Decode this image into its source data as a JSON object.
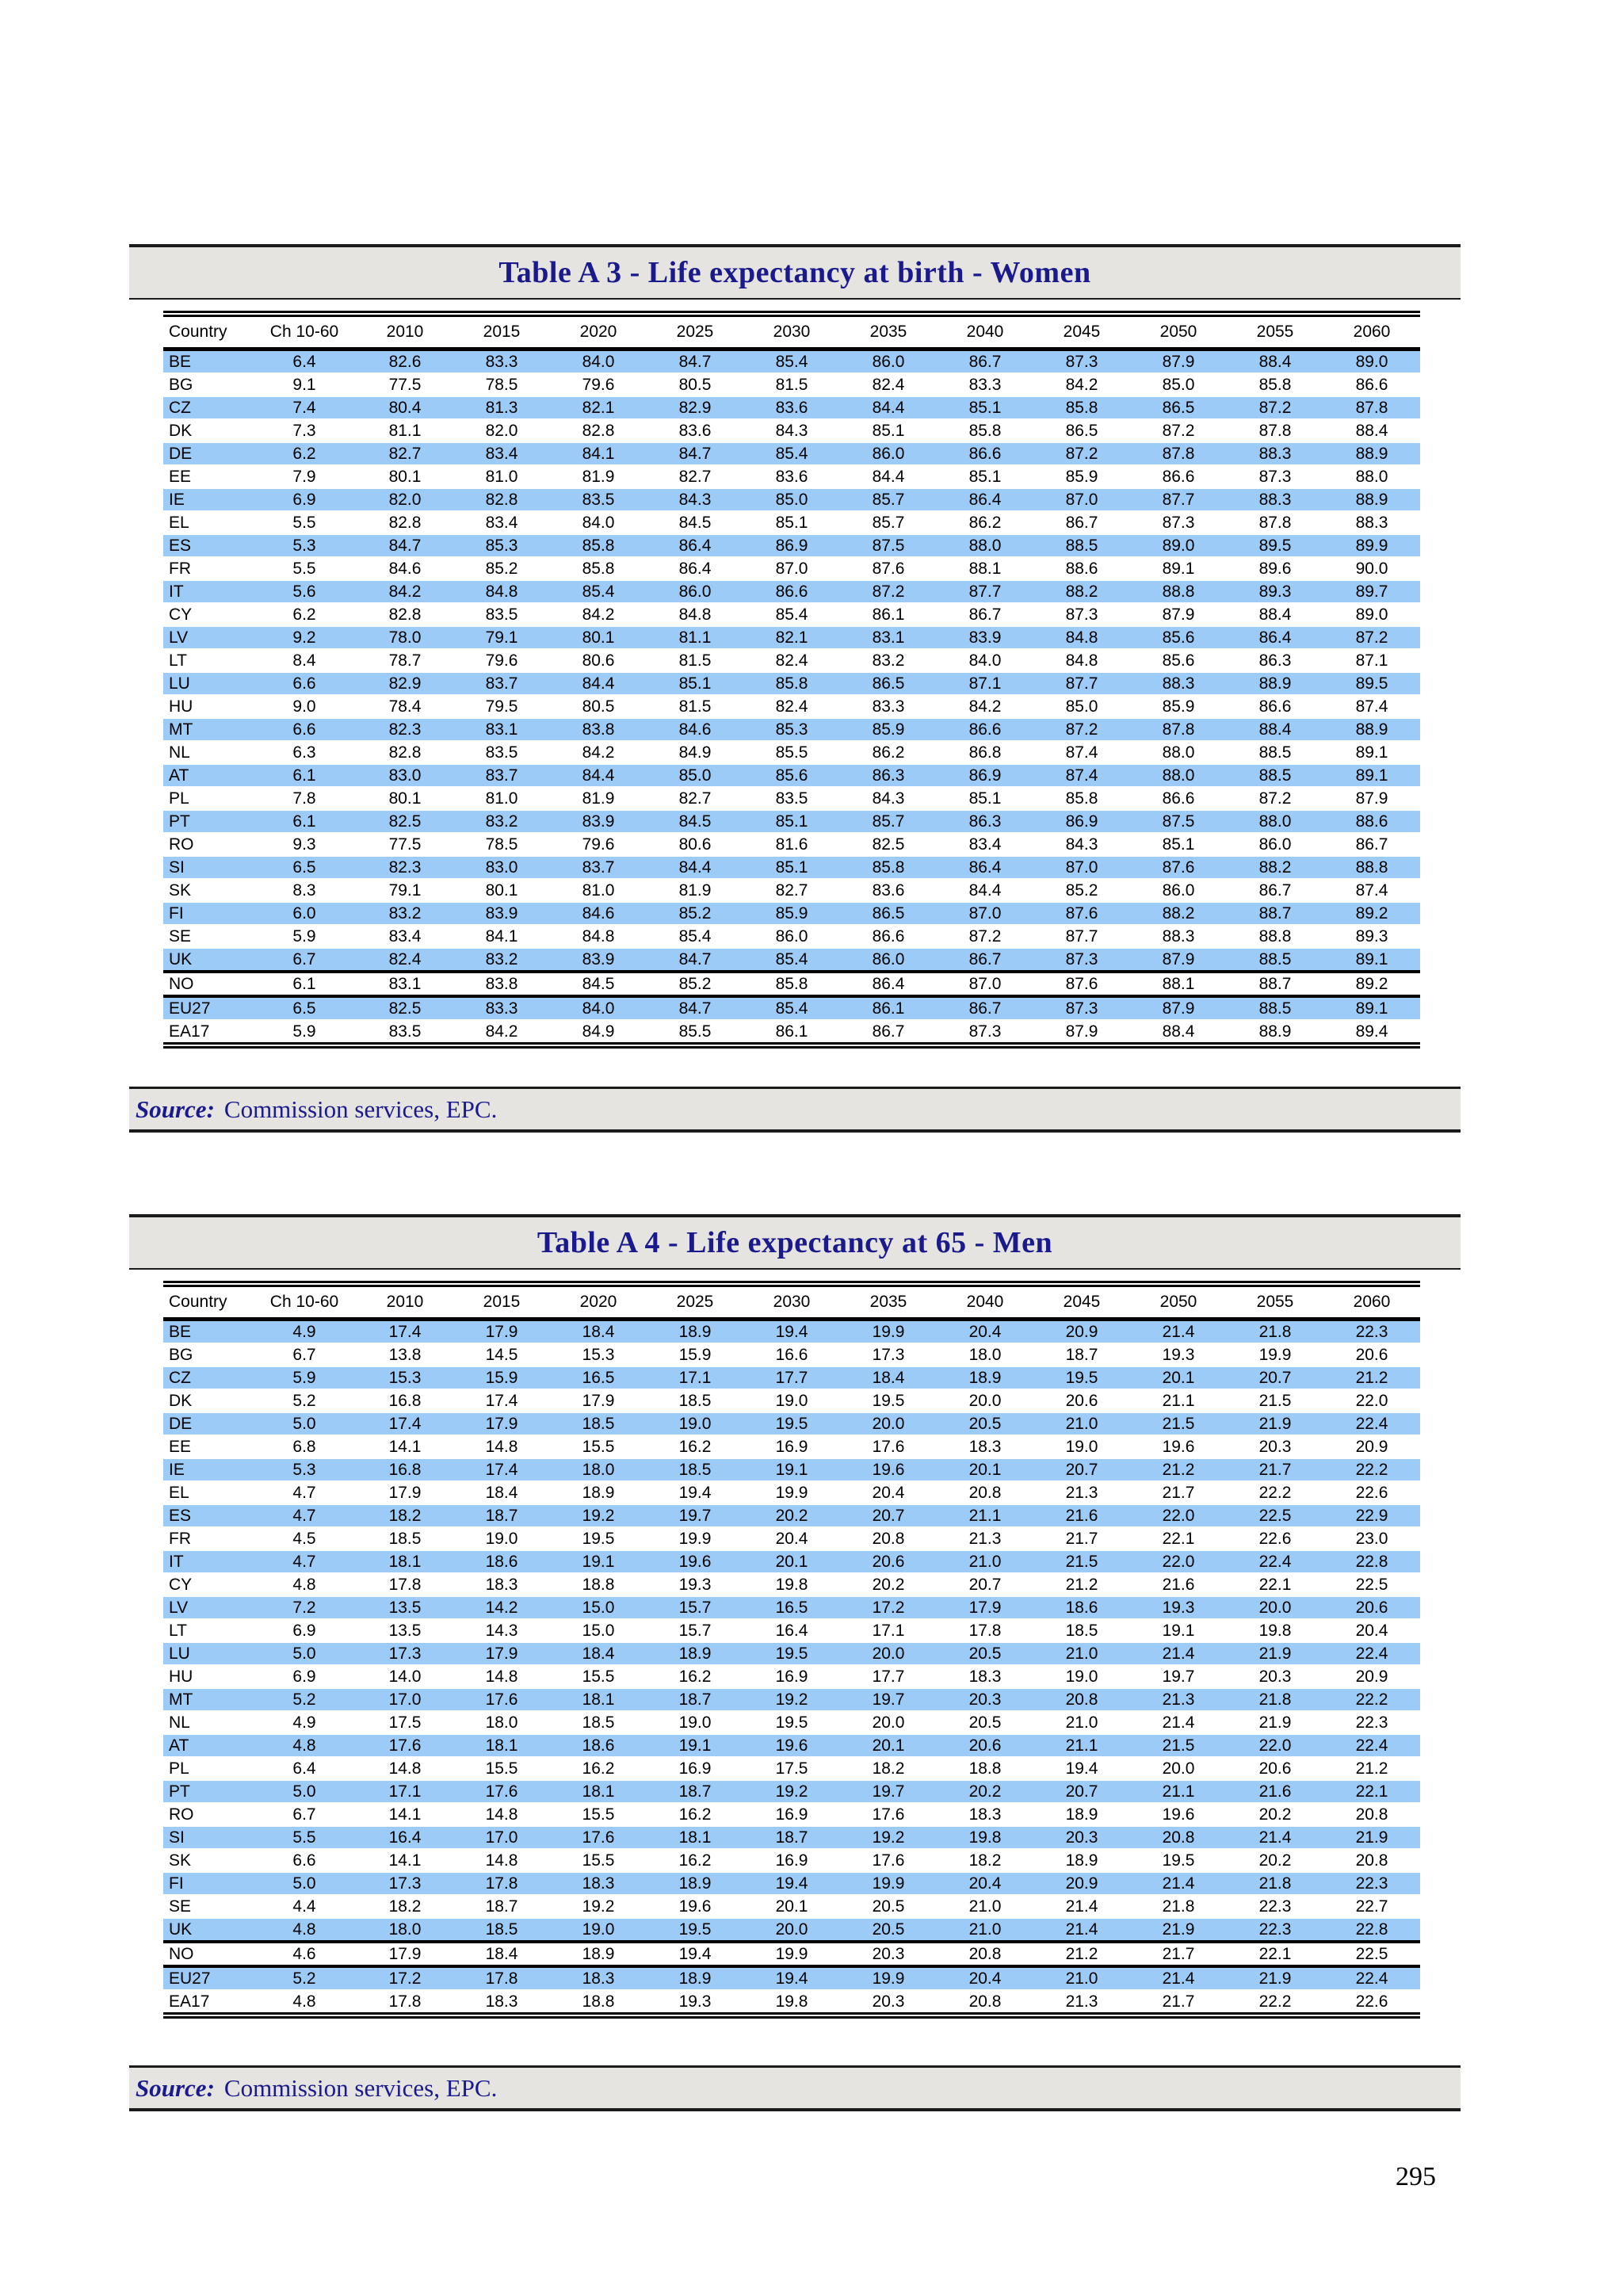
{
  "page": {
    "number": "295"
  },
  "colors": {
    "row_highlight": "#9BCBF6",
    "band_bg": "#E5E4E1",
    "heading_text": "#1A1A8C",
    "border_dark": "#1B1B1B"
  },
  "tables": [
    {
      "title": "Table A 3 - Life expectancy at birth - Women",
      "source_label": "Source:",
      "source_text": "Commission services, EPC.",
      "columns": [
        "Country",
        "Ch 10-60",
        "2010",
        "2015",
        "2020",
        "2025",
        "2030",
        "2035",
        "2040",
        "2045",
        "2050",
        "2055",
        "2060"
      ],
      "thick_separator_after": [
        "UK",
        "NO"
      ],
      "rows": [
        [
          "BE",
          "6.4",
          "82.6",
          "83.3",
          "84.0",
          "84.7",
          "85.4",
          "86.0",
          "86.7",
          "87.3",
          "87.9",
          "88.4",
          "89.0"
        ],
        [
          "BG",
          "9.1",
          "77.5",
          "78.5",
          "79.6",
          "80.5",
          "81.5",
          "82.4",
          "83.3",
          "84.2",
          "85.0",
          "85.8",
          "86.6"
        ],
        [
          "CZ",
          "7.4",
          "80.4",
          "81.3",
          "82.1",
          "82.9",
          "83.6",
          "84.4",
          "85.1",
          "85.8",
          "86.5",
          "87.2",
          "87.8"
        ],
        [
          "DK",
          "7.3",
          "81.1",
          "82.0",
          "82.8",
          "83.6",
          "84.3",
          "85.1",
          "85.8",
          "86.5",
          "87.2",
          "87.8",
          "88.4"
        ],
        [
          "DE",
          "6.2",
          "82.7",
          "83.4",
          "84.1",
          "84.7",
          "85.4",
          "86.0",
          "86.6",
          "87.2",
          "87.8",
          "88.3",
          "88.9"
        ],
        [
          "EE",
          "7.9",
          "80.1",
          "81.0",
          "81.9",
          "82.7",
          "83.6",
          "84.4",
          "85.1",
          "85.9",
          "86.6",
          "87.3",
          "88.0"
        ],
        [
          "IE",
          "6.9",
          "82.0",
          "82.8",
          "83.5",
          "84.3",
          "85.0",
          "85.7",
          "86.4",
          "87.0",
          "87.7",
          "88.3",
          "88.9"
        ],
        [
          "EL",
          "5.5",
          "82.8",
          "83.4",
          "84.0",
          "84.5",
          "85.1",
          "85.7",
          "86.2",
          "86.7",
          "87.3",
          "87.8",
          "88.3"
        ],
        [
          "ES",
          "5.3",
          "84.7",
          "85.3",
          "85.8",
          "86.4",
          "86.9",
          "87.5",
          "88.0",
          "88.5",
          "89.0",
          "89.5",
          "89.9"
        ],
        [
          "FR",
          "5.5",
          "84.6",
          "85.2",
          "85.8",
          "86.4",
          "87.0",
          "87.6",
          "88.1",
          "88.6",
          "89.1",
          "89.6",
          "90.0"
        ],
        [
          "IT",
          "5.6",
          "84.2",
          "84.8",
          "85.4",
          "86.0",
          "86.6",
          "87.2",
          "87.7",
          "88.2",
          "88.8",
          "89.3",
          "89.7"
        ],
        [
          "CY",
          "6.2",
          "82.8",
          "83.5",
          "84.2",
          "84.8",
          "85.4",
          "86.1",
          "86.7",
          "87.3",
          "87.9",
          "88.4",
          "89.0"
        ],
        [
          "LV",
          "9.2",
          "78.0",
          "79.1",
          "80.1",
          "81.1",
          "82.1",
          "83.1",
          "83.9",
          "84.8",
          "85.6",
          "86.4",
          "87.2"
        ],
        [
          "LT",
          "8.4",
          "78.7",
          "79.6",
          "80.6",
          "81.5",
          "82.4",
          "83.2",
          "84.0",
          "84.8",
          "85.6",
          "86.3",
          "87.1"
        ],
        [
          "LU",
          "6.6",
          "82.9",
          "83.7",
          "84.4",
          "85.1",
          "85.8",
          "86.5",
          "87.1",
          "87.7",
          "88.3",
          "88.9",
          "89.5"
        ],
        [
          "HU",
          "9.0",
          "78.4",
          "79.5",
          "80.5",
          "81.5",
          "82.4",
          "83.3",
          "84.2",
          "85.0",
          "85.9",
          "86.6",
          "87.4"
        ],
        [
          "MT",
          "6.6",
          "82.3",
          "83.1",
          "83.8",
          "84.6",
          "85.3",
          "85.9",
          "86.6",
          "87.2",
          "87.8",
          "88.4",
          "88.9"
        ],
        [
          "NL",
          "6.3",
          "82.8",
          "83.5",
          "84.2",
          "84.9",
          "85.5",
          "86.2",
          "86.8",
          "87.4",
          "88.0",
          "88.5",
          "89.1"
        ],
        [
          "AT",
          "6.1",
          "83.0",
          "83.7",
          "84.4",
          "85.0",
          "85.6",
          "86.3",
          "86.9",
          "87.4",
          "88.0",
          "88.5",
          "89.1"
        ],
        [
          "PL",
          "7.8",
          "80.1",
          "81.0",
          "81.9",
          "82.7",
          "83.5",
          "84.3",
          "85.1",
          "85.8",
          "86.6",
          "87.2",
          "87.9"
        ],
        [
          "PT",
          "6.1",
          "82.5",
          "83.2",
          "83.9",
          "84.5",
          "85.1",
          "85.7",
          "86.3",
          "86.9",
          "87.5",
          "88.0",
          "88.6"
        ],
        [
          "RO",
          "9.3",
          "77.5",
          "78.5",
          "79.6",
          "80.6",
          "81.6",
          "82.5",
          "83.4",
          "84.3",
          "85.1",
          "86.0",
          "86.7"
        ],
        [
          "SI",
          "6.5",
          "82.3",
          "83.0",
          "83.7",
          "84.4",
          "85.1",
          "85.8",
          "86.4",
          "87.0",
          "87.6",
          "88.2",
          "88.8"
        ],
        [
          "SK",
          "8.3",
          "79.1",
          "80.1",
          "81.0",
          "81.9",
          "82.7",
          "83.6",
          "84.4",
          "85.2",
          "86.0",
          "86.7",
          "87.4"
        ],
        [
          "FI",
          "6.0",
          "83.2",
          "83.9",
          "84.6",
          "85.2",
          "85.9",
          "86.5",
          "87.0",
          "87.6",
          "88.2",
          "88.7",
          "89.2"
        ],
        [
          "SE",
          "5.9",
          "83.4",
          "84.1",
          "84.8",
          "85.4",
          "86.0",
          "86.6",
          "87.2",
          "87.7",
          "88.3",
          "88.8",
          "89.3"
        ],
        [
          "UK",
          "6.7",
          "82.4",
          "83.2",
          "83.9",
          "84.7",
          "85.4",
          "86.0",
          "86.7",
          "87.3",
          "87.9",
          "88.5",
          "89.1"
        ],
        [
          "NO",
          "6.1",
          "83.1",
          "83.8",
          "84.5",
          "85.2",
          "85.8",
          "86.4",
          "87.0",
          "87.6",
          "88.1",
          "88.7",
          "89.2"
        ],
        [
          "EU27",
          "6.5",
          "82.5",
          "83.3",
          "84.0",
          "84.7",
          "85.4",
          "86.1",
          "86.7",
          "87.3",
          "87.9",
          "88.5",
          "89.1"
        ],
        [
          "EA17",
          "5.9",
          "83.5",
          "84.2",
          "84.9",
          "85.5",
          "86.1",
          "86.7",
          "87.3",
          "87.9",
          "88.4",
          "88.9",
          "89.4"
        ]
      ]
    },
    {
      "title": "Table A 4 - Life expectancy at 65 - Men",
      "source_label": "Source:",
      "source_text": "Commission services, EPC.",
      "columns": [
        "Country",
        "Ch 10-60",
        "2010",
        "2015",
        "2020",
        "2025",
        "2030",
        "2035",
        "2040",
        "2045",
        "2050",
        "2055",
        "2060"
      ],
      "thick_separator_after": [
        "UK",
        "NO"
      ],
      "rows": [
        [
          "BE",
          "4.9",
          "17.4",
          "17.9",
          "18.4",
          "18.9",
          "19.4",
          "19.9",
          "20.4",
          "20.9",
          "21.4",
          "21.8",
          "22.3"
        ],
        [
          "BG",
          "6.7",
          "13.8",
          "14.5",
          "15.3",
          "15.9",
          "16.6",
          "17.3",
          "18.0",
          "18.7",
          "19.3",
          "19.9",
          "20.6"
        ],
        [
          "CZ",
          "5.9",
          "15.3",
          "15.9",
          "16.5",
          "17.1",
          "17.7",
          "18.4",
          "18.9",
          "19.5",
          "20.1",
          "20.7",
          "21.2"
        ],
        [
          "DK",
          "5.2",
          "16.8",
          "17.4",
          "17.9",
          "18.5",
          "19.0",
          "19.5",
          "20.0",
          "20.6",
          "21.1",
          "21.5",
          "22.0"
        ],
        [
          "DE",
          "5.0",
          "17.4",
          "17.9",
          "18.5",
          "19.0",
          "19.5",
          "20.0",
          "20.5",
          "21.0",
          "21.5",
          "21.9",
          "22.4"
        ],
        [
          "EE",
          "6.8",
          "14.1",
          "14.8",
          "15.5",
          "16.2",
          "16.9",
          "17.6",
          "18.3",
          "19.0",
          "19.6",
          "20.3",
          "20.9"
        ],
        [
          "IE",
          "5.3",
          "16.8",
          "17.4",
          "18.0",
          "18.5",
          "19.1",
          "19.6",
          "20.1",
          "20.7",
          "21.2",
          "21.7",
          "22.2"
        ],
        [
          "EL",
          "4.7",
          "17.9",
          "18.4",
          "18.9",
          "19.4",
          "19.9",
          "20.4",
          "20.8",
          "21.3",
          "21.7",
          "22.2",
          "22.6"
        ],
        [
          "ES",
          "4.7",
          "18.2",
          "18.7",
          "19.2",
          "19.7",
          "20.2",
          "20.7",
          "21.1",
          "21.6",
          "22.0",
          "22.5",
          "22.9"
        ],
        [
          "FR",
          "4.5",
          "18.5",
          "19.0",
          "19.5",
          "19.9",
          "20.4",
          "20.8",
          "21.3",
          "21.7",
          "22.1",
          "22.6",
          "23.0"
        ],
        [
          "IT",
          "4.7",
          "18.1",
          "18.6",
          "19.1",
          "19.6",
          "20.1",
          "20.6",
          "21.0",
          "21.5",
          "22.0",
          "22.4",
          "22.8"
        ],
        [
          "CY",
          "4.8",
          "17.8",
          "18.3",
          "18.8",
          "19.3",
          "19.8",
          "20.2",
          "20.7",
          "21.2",
          "21.6",
          "22.1",
          "22.5"
        ],
        [
          "LV",
          "7.2",
          "13.5",
          "14.2",
          "15.0",
          "15.7",
          "16.5",
          "17.2",
          "17.9",
          "18.6",
          "19.3",
          "20.0",
          "20.6"
        ],
        [
          "LT",
          "6.9",
          "13.5",
          "14.3",
          "15.0",
          "15.7",
          "16.4",
          "17.1",
          "17.8",
          "18.5",
          "19.1",
          "19.8",
          "20.4"
        ],
        [
          "LU",
          "5.0",
          "17.3",
          "17.9",
          "18.4",
          "18.9",
          "19.5",
          "20.0",
          "20.5",
          "21.0",
          "21.4",
          "21.9",
          "22.4"
        ],
        [
          "HU",
          "6.9",
          "14.0",
          "14.8",
          "15.5",
          "16.2",
          "16.9",
          "17.7",
          "18.3",
          "19.0",
          "19.7",
          "20.3",
          "20.9"
        ],
        [
          "MT",
          "5.2",
          "17.0",
          "17.6",
          "18.1",
          "18.7",
          "19.2",
          "19.7",
          "20.3",
          "20.8",
          "21.3",
          "21.8",
          "22.2"
        ],
        [
          "NL",
          "4.9",
          "17.5",
          "18.0",
          "18.5",
          "19.0",
          "19.5",
          "20.0",
          "20.5",
          "21.0",
          "21.4",
          "21.9",
          "22.3"
        ],
        [
          "AT",
          "4.8",
          "17.6",
          "18.1",
          "18.6",
          "19.1",
          "19.6",
          "20.1",
          "20.6",
          "21.1",
          "21.5",
          "22.0",
          "22.4"
        ],
        [
          "PL",
          "6.4",
          "14.8",
          "15.5",
          "16.2",
          "16.9",
          "17.5",
          "18.2",
          "18.8",
          "19.4",
          "20.0",
          "20.6",
          "21.2"
        ],
        [
          "PT",
          "5.0",
          "17.1",
          "17.6",
          "18.1",
          "18.7",
          "19.2",
          "19.7",
          "20.2",
          "20.7",
          "21.1",
          "21.6",
          "22.1"
        ],
        [
          "RO",
          "6.7",
          "14.1",
          "14.8",
          "15.5",
          "16.2",
          "16.9",
          "17.6",
          "18.3",
          "18.9",
          "19.6",
          "20.2",
          "20.8"
        ],
        [
          "SI",
          "5.5",
          "16.4",
          "17.0",
          "17.6",
          "18.1",
          "18.7",
          "19.2",
          "19.8",
          "20.3",
          "20.8",
          "21.4",
          "21.9"
        ],
        [
          "SK",
          "6.6",
          "14.1",
          "14.8",
          "15.5",
          "16.2",
          "16.9",
          "17.6",
          "18.2",
          "18.9",
          "19.5",
          "20.2",
          "20.8"
        ],
        [
          "FI",
          "5.0",
          "17.3",
          "17.8",
          "18.3",
          "18.9",
          "19.4",
          "19.9",
          "20.4",
          "20.9",
          "21.4",
          "21.8",
          "22.3"
        ],
        [
          "SE",
          "4.4",
          "18.2",
          "18.7",
          "19.2",
          "19.6",
          "20.1",
          "20.5",
          "21.0",
          "21.4",
          "21.8",
          "22.3",
          "22.7"
        ],
        [
          "UK",
          "4.8",
          "18.0",
          "18.5",
          "19.0",
          "19.5",
          "20.0",
          "20.5",
          "21.0",
          "21.4",
          "21.9",
          "22.3",
          "22.8"
        ],
        [
          "NO",
          "4.6",
          "17.9",
          "18.4",
          "18.9",
          "19.4",
          "19.9",
          "20.3",
          "20.8",
          "21.2",
          "21.7",
          "22.1",
          "22.5"
        ],
        [
          "EU27",
          "5.2",
          "17.2",
          "17.8",
          "18.3",
          "18.9",
          "19.4",
          "19.9",
          "20.4",
          "21.0",
          "21.4",
          "21.9",
          "22.4"
        ],
        [
          "EA17",
          "4.8",
          "17.8",
          "18.3",
          "18.8",
          "19.3",
          "19.8",
          "20.3",
          "20.8",
          "21.3",
          "21.7",
          "22.2",
          "22.6"
        ]
      ]
    }
  ]
}
